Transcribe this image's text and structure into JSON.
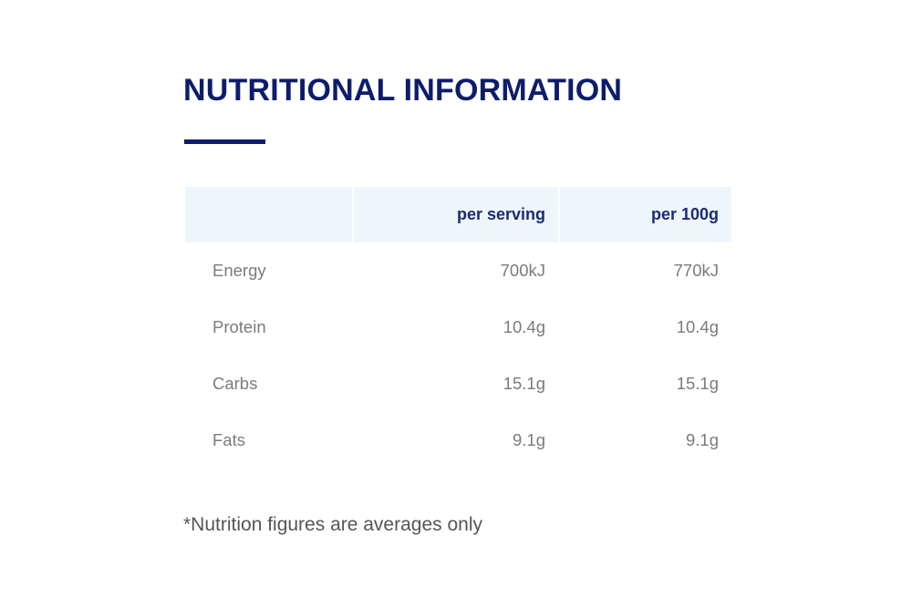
{
  "section": {
    "title": "NUTRITIONAL INFORMATION"
  },
  "table": {
    "headers": [
      "",
      "per serving",
      "per 100g"
    ],
    "rows": [
      {
        "nutrient": "Energy",
        "per_serving": "700kJ",
        "per_100g": "770kJ"
      },
      {
        "nutrient": "Protein",
        "per_serving": "10.4g",
        "per_100g": "10.4g"
      },
      {
        "nutrient": "Carbs",
        "per_serving": "15.1g",
        "per_100g": "15.1g"
      },
      {
        "nutrient": "Fats",
        "per_serving": "9.1g",
        "per_100g": "9.1g"
      }
    ]
  },
  "footnote": "*Nutrition figures are averages only",
  "colors": {
    "heading": "#0d1d6b",
    "header_bg": "#eef6fb",
    "header_text": "#1c2a73",
    "cell_text": "#7b7b7b"
  }
}
